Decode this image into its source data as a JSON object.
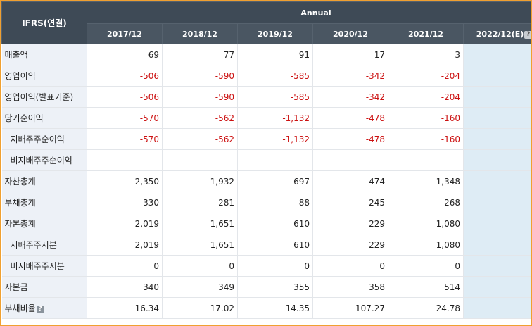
{
  "header": {
    "corner": "IFRS(연결)",
    "group": "Annual",
    "columns": [
      "2017/12",
      "2018/12",
      "2019/12",
      "2020/12",
      "2021/12",
      "2022/12(E)"
    ]
  },
  "rows": [
    {
      "label": "매출액",
      "sub": false,
      "help": false,
      "values": [
        "69",
        "77",
        "91",
        "17",
        "3"
      ]
    },
    {
      "label": "영업이익",
      "sub": false,
      "help": false,
      "values": [
        "-506",
        "-590",
        "-585",
        "-342",
        "-204"
      ]
    },
    {
      "label": "영업이익(발표기준)",
      "sub": false,
      "help": false,
      "values": [
        "-506",
        "-590",
        "-585",
        "-342",
        "-204"
      ]
    },
    {
      "label": "당기순이익",
      "sub": false,
      "help": false,
      "values": [
        "-570",
        "-562",
        "-1,132",
        "-478",
        "-160"
      ]
    },
    {
      "label": "지배주주순이익",
      "sub": true,
      "help": false,
      "values": [
        "-570",
        "-562",
        "-1,132",
        "-478",
        "-160"
      ]
    },
    {
      "label": "비지배주주순이익",
      "sub": true,
      "help": false,
      "values": [
        "",
        "",
        "",
        "",
        ""
      ]
    },
    {
      "label": "자산총계",
      "sub": false,
      "help": false,
      "values": [
        "2,350",
        "1,932",
        "697",
        "474",
        "1,348"
      ]
    },
    {
      "label": "부채총계",
      "sub": false,
      "help": false,
      "values": [
        "330",
        "281",
        "88",
        "245",
        "268"
      ]
    },
    {
      "label": "자본총계",
      "sub": false,
      "help": false,
      "values": [
        "2,019",
        "1,651",
        "610",
        "229",
        "1,080"
      ]
    },
    {
      "label": "지배주주지분",
      "sub": true,
      "help": false,
      "values": [
        "2,019",
        "1,651",
        "610",
        "229",
        "1,080"
      ]
    },
    {
      "label": "비지배주주지분",
      "sub": true,
      "help": false,
      "values": [
        "0",
        "0",
        "0",
        "0",
        "0"
      ]
    },
    {
      "label": "자본금",
      "sub": false,
      "help": false,
      "values": [
        "340",
        "349",
        "355",
        "358",
        "514"
      ]
    },
    {
      "label": "부채비율",
      "sub": false,
      "help": true,
      "values": [
        "16.34",
        "17.02",
        "14.35",
        "107.27",
        "24.78"
      ]
    }
  ],
  "help_glyph": "?",
  "colors": {
    "header_bg": "#3e4a56",
    "label_bg": "#edf1f7",
    "estimate_bg": "#deecf5",
    "negative": "#cc1111",
    "frame": "#f0a030"
  }
}
